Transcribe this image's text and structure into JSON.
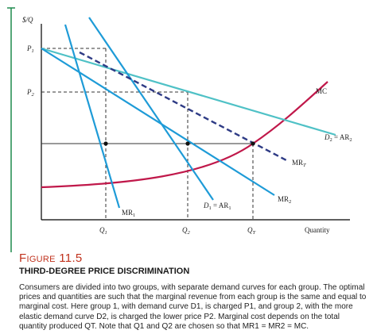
{
  "diagram": {
    "y_axis_label": "$/Q",
    "x_axis_label": "Quantity",
    "price_labels": {
      "p1": "P1",
      "p2": "P2"
    },
    "quantity_labels": {
      "q1": "Q1",
      "q2": "Q2",
      "qt": "QT"
    },
    "curve_labels": {
      "mc": "MC",
      "d2": "D2 = AR2",
      "mrt": "MRT",
      "mr2": "MR2",
      "d1": "D1 = AR1",
      "mr1": "MR1"
    },
    "colors": {
      "demand_curves": "#4fc1c6",
      "marginal_revenue": "#1e9bd7",
      "mc_curve": "#c0184a",
      "mrt_dashed": "#2e3b85",
      "axis": "#000000",
      "guide_lines": "#333333",
      "accent_rule": "#1f8a4d",
      "figure_label": "#c0321d"
    }
  },
  "caption": {
    "figure_label": "Figure 11.5",
    "title": "THIRD-DEGREE PRICE DISCRIMINATION",
    "body": "Consumers are divided into two groups, with separate demand curves for each group. The optimal prices and quantities are such that the marginal revenue from each group is the same and equal to marginal cost. Here group 1, with demand curve D1, is charged P1, and group 2, with the more elastic demand curve D2, is charged the lower price P2. Marginal cost depends on the total quantity produced QT. Note that Q1 and Q2 are chosen so that MR1 = MR2 = MC."
  }
}
